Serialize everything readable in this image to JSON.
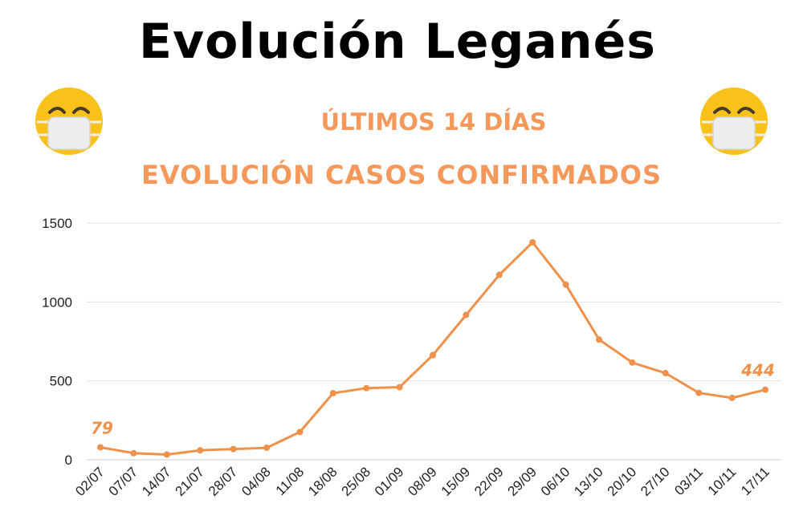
{
  "header": {
    "title": "Evolución Leganés",
    "subtitle": "ÚLTIMOS 14 DÍAS",
    "subtitle2": "EVOLUCIÓN CASOS CONFIRMADOS"
  },
  "icons": {
    "left": "face-with-medical-mask-icon",
    "right": "face-with-medical-mask-icon"
  },
  "colors": {
    "accent": "#f5985a",
    "line": "#f0914a",
    "title": "#000000",
    "grid": "#dddddd",
    "emoji_face": "#f9c21b",
    "mask": "#eeeeee"
  },
  "chart_data": {
    "type": "line",
    "categories": [
      "02/07",
      "07/07",
      "14/07",
      "21/07",
      "28/07",
      "04/08",
      "11/08",
      "18/08",
      "25/08",
      "01/09",
      "08/09",
      "15/09",
      "22/09",
      "29/09",
      "06/10",
      "13/10",
      "20/10",
      "27/10",
      "03/11",
      "10/11",
      "17/11"
    ],
    "values": [
      79,
      42,
      33,
      60,
      68,
      76,
      176,
      422,
      454,
      460,
      663,
      918,
      1172,
      1378,
      1110,
      762,
      616,
      549,
      424,
      392,
      444
    ],
    "yticks": [
      "0",
      "500",
      "1000",
      "1500"
    ],
    "ytick_values": [
      0,
      500,
      1000,
      1500
    ],
    "ylim": [
      0,
      1500
    ],
    "grid": "horizontal",
    "annotations": [
      {
        "index": 0,
        "text": "79"
      },
      {
        "index": 20,
        "text": "444"
      }
    ]
  }
}
